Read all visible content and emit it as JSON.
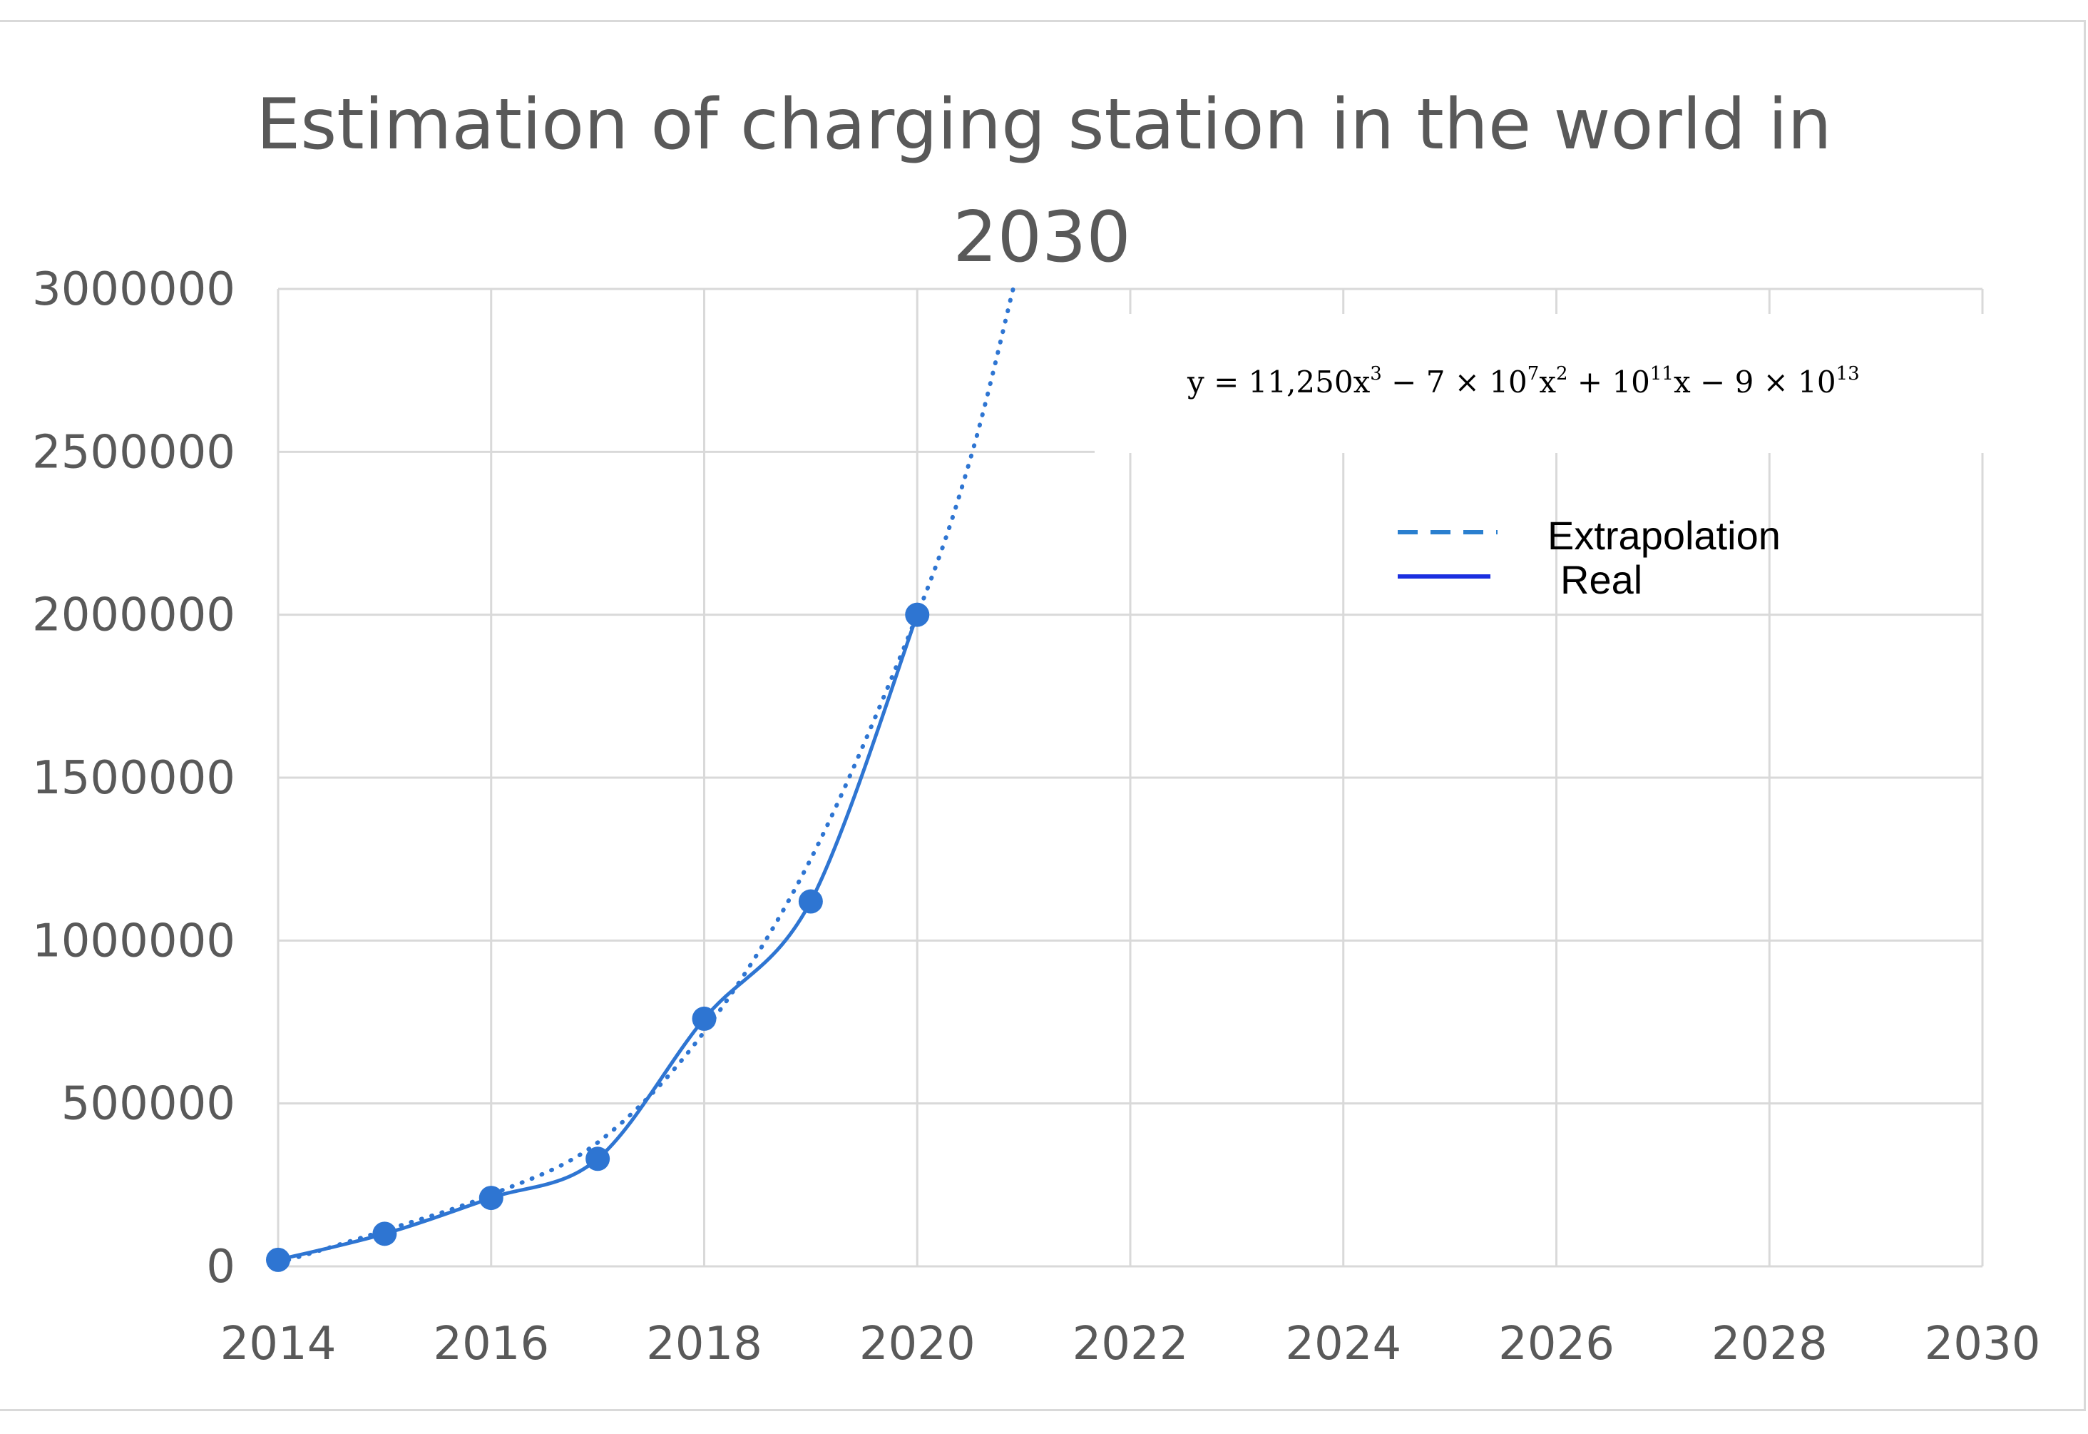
{
  "chart_data": {
    "type": "line",
    "title_lines": [
      "Estimation of charging station in the world in",
      "2030"
    ],
    "xlabel": "",
    "ylabel": "",
    "xlim": [
      2014,
      2030
    ],
    "ylim": [
      0,
      3000000
    ],
    "x_ticks": [
      2014,
      2016,
      2018,
      2020,
      2022,
      2024,
      2026,
      2028,
      2030
    ],
    "y_ticks": [
      0,
      500000,
      1000000,
      1500000,
      2000000,
      2500000,
      3000000
    ],
    "x_tick_labels": [
      "2014",
      "2016",
      "2018",
      "2020",
      "2022",
      "2024",
      "2026",
      "2028",
      "2030"
    ],
    "y_tick_labels": [
      "0",
      "500000",
      "1000000",
      "1500000",
      "2000000",
      "2500000",
      "3000000"
    ],
    "grid": true,
    "series": [
      {
        "name": "Real",
        "style": "solid",
        "markers": true,
        "color": "#2e75d2",
        "x": [
          2014,
          2015,
          2016,
          2017,
          2018,
          2019,
          2020
        ],
        "values": [
          20000,
          100000,
          210000,
          330000,
          760000,
          1120000,
          2000000
        ]
      },
      {
        "name": "Extrapolation",
        "style": "dotted",
        "markers": false,
        "color": "#2e75d2",
        "x": [
          2014,
          2015,
          2016,
          2017,
          2018,
          2019,
          2020,
          2020.5,
          2020.9
        ],
        "values": [
          10000,
          110000,
          220000,
          380000,
          720000,
          1250000,
          2000000,
          2480000,
          3000000
        ]
      }
    ],
    "legend": {
      "position": "top-right",
      "entries": [
        {
          "label": "Extrapolation",
          "style": "dashed",
          "color": "#2a7fcf"
        },
        {
          "label": "Real",
          "style": "solid",
          "color": "#1b2fe0"
        }
      ]
    },
    "equation": {
      "lhs": "y = 11,250x",
      "p1": "3",
      "mid1": " − 7 × 10",
      "p2": "7",
      "mid2": "x",
      "p3": "2",
      "mid3": " + 10",
      "p4": "11",
      "mid4": "x − 9 × 10",
      "p5": "13"
    }
  }
}
